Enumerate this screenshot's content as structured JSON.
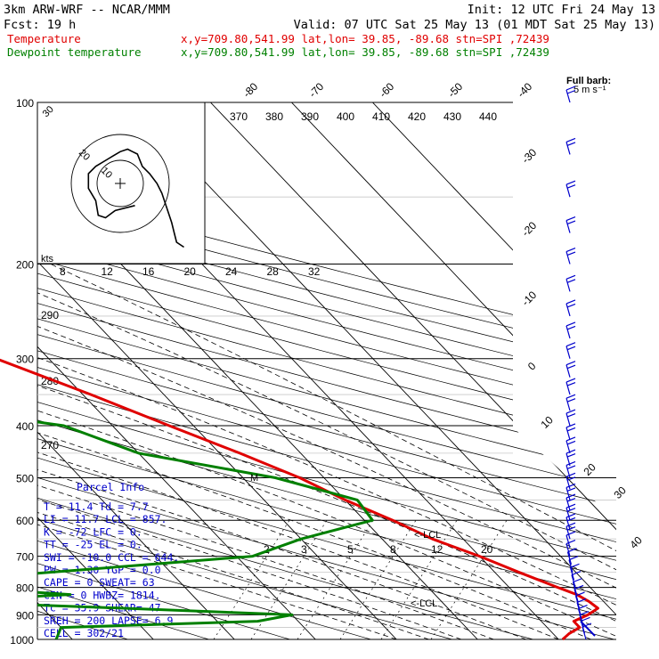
{
  "header": {
    "model": "3km ARW-WRF -- NCAR/MMM",
    "init": "Init: 12 UTC Fri 24 May 13",
    "fcst": "Fcst:   19 h",
    "valid": "Valid: 07 UTC Sat 25 May 13 (01 MDT Sat 25 May 13)"
  },
  "legend": [
    {
      "name": "Temperature",
      "info": "x,y=709.80,541.99   lat,lon= 39.85, -89.68  stn=SPI ,72439",
      "color": "#e00000"
    },
    {
      "name": "Dewpoint temperature",
      "info": "x,y=709.80,541.99   lat,lon= 39.85, -89.68  stn=SPI ,72439",
      "color": "#008000"
    }
  ],
  "full_barb": {
    "line1": "Full barb:",
    "line2": "5 m s⁻¹"
  },
  "parcel_info": {
    "title": "Parcel Info",
    "rows": [
      "T  =    11.4 Td =   7.7",
      "LI =    11.7 LCL =  857.",
      "K  =     -72 LFC =    0.",
      "TT =     -25 EL  =    0.",
      "SWI =  -10.0 CCL =  644.",
      "PW =    1.30 YGP =  0.0",
      "CAPE =     0 SWEAT=  63",
      "CIN =      0 HWBZ= 1814.",
      "Tc =    35.9 SHEAR=  47",
      "SREH =   200 LAPSE= 6.9",
      "CELL = 302/21"
    ]
  },
  "annotations": {
    "lcl1": "<-LCL",
    "lcl2": "<-LCL",
    "m_marker": "M"
  },
  "hodograph": {
    "ring_labels": [
      "10",
      "20",
      "30"
    ],
    "speed_label": "kts"
  },
  "chart_data": {
    "type": "line",
    "title": "",
    "ylabel": "",
    "y_axis": "pressure (hPa, log scale, inverted)",
    "ylim": [
      1000,
      100
    ],
    "pressure_ticks": [
      100,
      200,
      300,
      400,
      500,
      600,
      700,
      800,
      900,
      1000
    ],
    "isotherm_labels": [
      -80,
      -70,
      -60,
      -50,
      -40,
      -30,
      -20,
      -10,
      0,
      10,
      20,
      30,
      40
    ],
    "theta_labels": [
      370,
      380,
      390,
      400,
      410,
      420,
      430,
      440
    ],
    "theta_left_labels": [
      290,
      280,
      270
    ],
    "thetae_labels": [
      8,
      12,
      16,
      20,
      24,
      28,
      32
    ],
    "mixing_ratio_labels": [
      2,
      3,
      5,
      8,
      12,
      20
    ],
    "series": [
      {
        "name": "Temperature",
        "color": "#e00000",
        "points": [
          [
            1000,
            10.5
          ],
          [
            975,
            12.0
          ],
          [
            950,
            14.0
          ],
          [
            925,
            14.0
          ],
          [
            900,
            16.5
          ],
          [
            875,
            18.5
          ],
          [
            850,
            18.2
          ],
          [
            825,
            17.5
          ],
          [
            800,
            16.0
          ],
          [
            750,
            13.0
          ],
          [
            700,
            10.0
          ],
          [
            650,
            6.2
          ],
          [
            600,
            3.5
          ],
          [
            550,
            0.0
          ],
          [
            500,
            -3.0
          ],
          [
            450,
            -7.5
          ],
          [
            400,
            -13.0
          ],
          [
            350,
            -19.0
          ],
          [
            300,
            -26.5
          ],
          [
            250,
            -36.5
          ],
          [
            200,
            -48.0
          ],
          [
            175,
            -52.0
          ],
          [
            150,
            -54.5
          ],
          [
            125,
            -53.0
          ],
          [
            100,
            -57.0
          ]
        ]
      },
      {
        "name": "Dewpoint temperature",
        "color": "#008000",
        "points": [
          [
            1000,
            -52.0
          ],
          [
            950,
            -50.0
          ],
          [
            925,
            -25.0
          ],
          [
            900,
            -20.0
          ],
          [
            875,
            -40.0
          ],
          [
            850,
            -62.0
          ],
          [
            825,
            -45.0
          ],
          [
            800,
            -58.0
          ],
          [
            760,
            -50.0
          ],
          [
            700,
            -18.0
          ],
          [
            650,
            -10.0
          ],
          [
            600,
            1.0
          ],
          [
            550,
            1.5
          ],
          [
            500,
            -6.0
          ],
          [
            450,
            -20.0
          ],
          [
            400,
            -26.0
          ],
          [
            360,
            -45.0
          ],
          [
            300,
            -46.5
          ],
          [
            250,
            -56.0
          ],
          [
            225,
            -55.0
          ],
          [
            200,
            -59.0
          ],
          [
            175,
            -65.0
          ],
          [
            150,
            -70.0
          ],
          [
            125,
            -72.0
          ],
          [
            100,
            -78.0
          ]
        ]
      }
    ],
    "wind_barbs_hPa": [
      1000,
      975,
      950,
      925,
      900,
      875,
      850,
      825,
      800,
      775,
      750,
      725,
      700,
      675,
      650,
      625,
      600,
      575,
      550,
      525,
      500,
      475,
      450,
      425,
      400,
      375,
      350,
      325,
      300,
      275,
      250,
      225,
      200,
      175,
      150,
      125,
      100
    ],
    "hodograph_trace_kts": [
      [
        6,
        -9
      ],
      [
        -2,
        -11
      ],
      [
        -6,
        -14
      ],
      [
        -9,
        -13
      ],
      [
        -10,
        -7
      ],
      [
        -13,
        -2
      ],
      [
        -13,
        4
      ],
      [
        -10,
        7
      ],
      [
        -5,
        10
      ],
      [
        0,
        13
      ],
      [
        3,
        14
      ],
      [
        5,
        13
      ],
      [
        7,
        12
      ],
      [
        9,
        7
      ],
      [
        12,
        4
      ],
      [
        15,
        0
      ],
      [
        17,
        -4
      ],
      [
        19,
        -10
      ],
      [
        21,
        -16
      ],
      [
        22,
        -20
      ],
      [
        23,
        -24
      ],
      [
        26,
        -26
      ]
    ]
  }
}
